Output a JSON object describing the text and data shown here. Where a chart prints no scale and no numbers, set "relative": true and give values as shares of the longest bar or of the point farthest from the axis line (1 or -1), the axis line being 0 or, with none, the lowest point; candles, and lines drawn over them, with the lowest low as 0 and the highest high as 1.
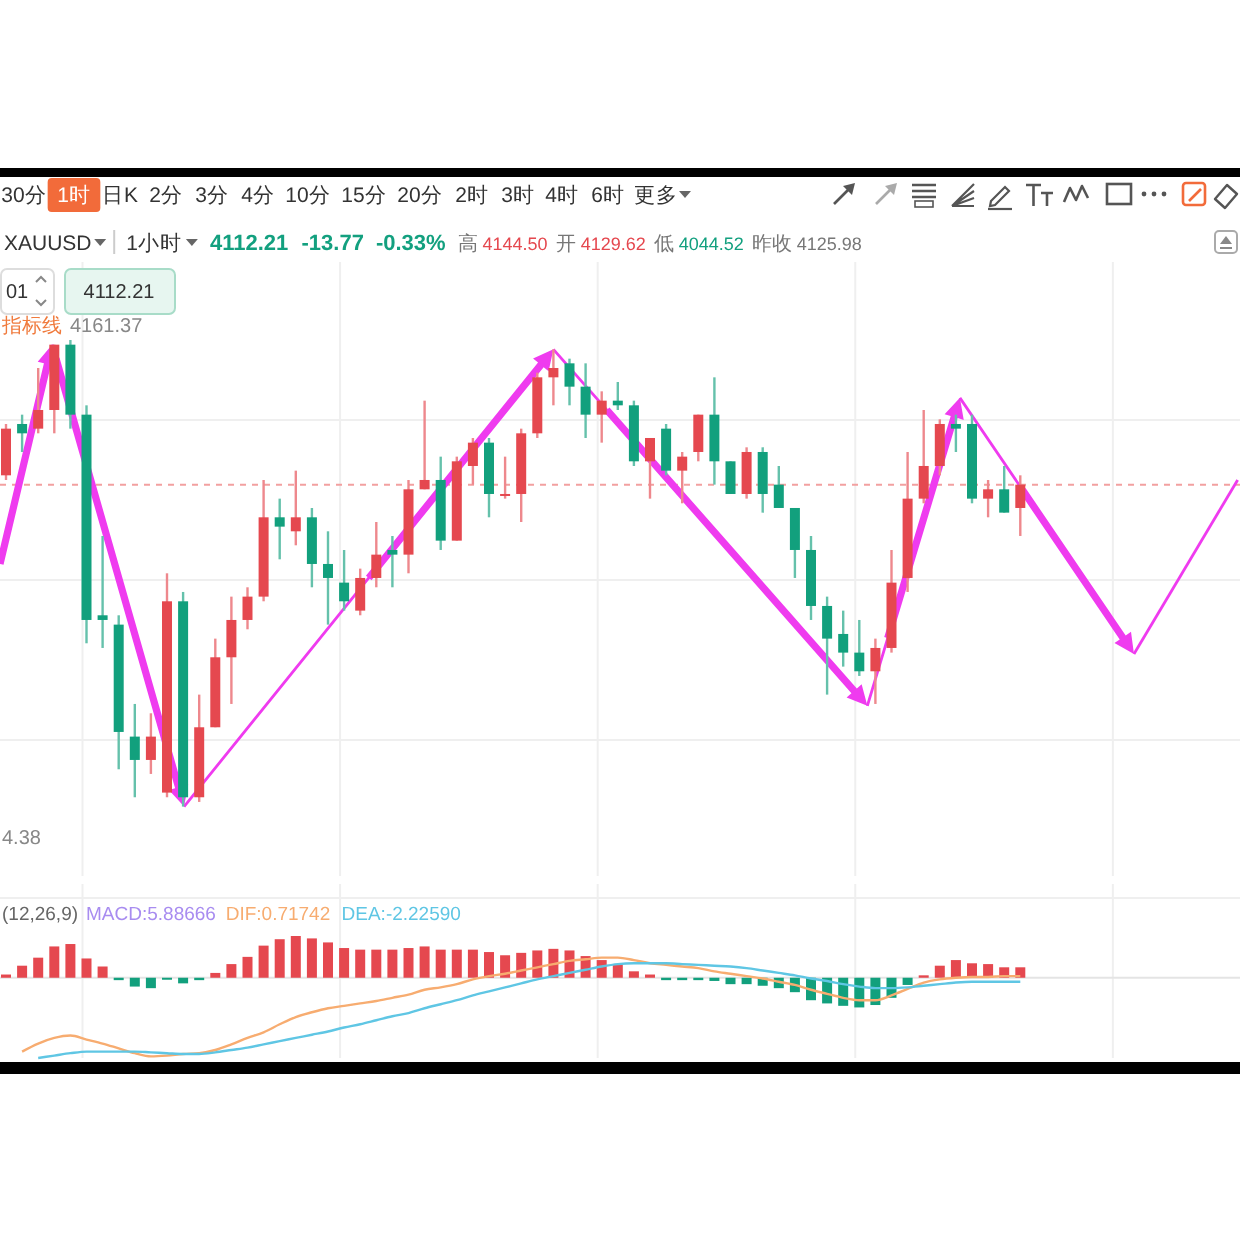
{
  "chart_data": [
    {
      "type": "other",
      "annotations": [
        "30分",
        "1时",
        "日K",
        "2分",
        "3分",
        "4分",
        "10分",
        "15分",
        "20分",
        "2时",
        "3时",
        "4时",
        "6时",
        "更多"
      ]
    },
    {
      "type": "candlestick",
      "title": "XAUUSD",
      "subtitle": "1小时",
      "relative": true,
      "grid": true,
      "categories": [
        null,
        null,
        null,
        null,
        null,
        null,
        null,
        null,
        null,
        null,
        null,
        null,
        null,
        null,
        null,
        null,
        null,
        null,
        null,
        null,
        null,
        null,
        null,
        null,
        null,
        null,
        null,
        null,
        null,
        null,
        null,
        null,
        null,
        null,
        null,
        null,
        null,
        null,
        null,
        null,
        null,
        null,
        null,
        null,
        null,
        null,
        null,
        null,
        null,
        null,
        null,
        null,
        null,
        null,
        null,
        null,
        null,
        null,
        null,
        null,
        null,
        null,
        null,
        null
      ],
      "ohlc": [
        [
          0.71,
          0.82,
          0.7,
          0.81
        ],
        [
          0.82,
          0.84,
          0.76,
          0.8
        ],
        [
          0.81,
          0.94,
          0.8,
          0.85
        ],
        [
          0.85,
          0.99,
          0.8,
          0.99
        ],
        [
          0.99,
          1.0,
          0.81,
          0.84
        ],
        [
          0.84,
          0.86,
          0.35,
          0.4
        ],
        [
          0.41,
          0.58,
          0.34,
          0.4
        ],
        [
          0.39,
          0.41,
          0.08,
          0.16
        ],
        [
          0.15,
          0.22,
          0.02,
          0.1
        ],
        [
          0.1,
          0.2,
          0.07,
          0.15
        ],
        [
          0.03,
          0.5,
          0.02,
          0.44
        ],
        [
          0.44,
          0.46,
          0.0,
          0.02
        ],
        [
          0.02,
          0.24,
          0.01,
          0.17
        ],
        [
          0.17,
          0.36,
          0.17,
          0.32
        ],
        [
          0.32,
          0.45,
          0.22,
          0.4
        ],
        [
          0.4,
          0.47,
          0.38,
          0.45
        ],
        [
          0.45,
          0.7,
          0.44,
          0.62
        ],
        [
          0.62,
          0.66,
          0.53,
          0.6
        ],
        [
          0.59,
          0.72,
          0.56,
          0.62
        ],
        [
          0.62,
          0.64,
          0.47,
          0.52
        ],
        [
          0.52,
          0.59,
          0.39,
          0.49
        ],
        [
          0.48,
          0.55,
          0.42,
          0.44
        ],
        [
          0.42,
          0.51,
          0.41,
          0.49
        ],
        [
          0.49,
          0.61,
          0.47,
          0.54
        ],
        [
          0.55,
          0.58,
          0.47,
          0.54
        ],
        [
          0.54,
          0.7,
          0.5,
          0.68
        ],
        [
          0.68,
          0.87,
          0.68,
          0.7
        ],
        [
          0.7,
          0.75,
          0.55,
          0.57
        ],
        [
          0.57,
          0.75,
          0.57,
          0.74
        ],
        [
          0.73,
          0.79,
          0.69,
          0.78
        ],
        [
          0.78,
          0.79,
          0.62,
          0.67
        ],
        [
          0.67,
          0.75,
          0.66,
          0.67
        ],
        [
          0.67,
          0.81,
          0.61,
          0.8
        ],
        [
          0.8,
          0.93,
          0.79,
          0.92
        ],
        [
          0.92,
          0.98,
          0.86,
          0.94
        ],
        [
          0.95,
          0.96,
          0.86,
          0.9
        ],
        [
          0.9,
          0.95,
          0.79,
          0.84
        ],
        [
          0.84,
          0.89,
          0.78,
          0.87
        ],
        [
          0.87,
          0.91,
          0.85,
          0.86
        ],
        [
          0.86,
          0.87,
          0.73,
          0.74
        ],
        [
          0.74,
          0.79,
          0.66,
          0.79
        ],
        [
          0.81,
          0.82,
          0.71,
          0.72
        ],
        [
          0.72,
          0.76,
          0.65,
          0.75
        ],
        [
          0.76,
          0.84,
          0.74,
          0.84
        ],
        [
          0.84,
          0.92,
          0.69,
          0.74
        ],
        [
          0.74,
          0.74,
          0.67,
          0.67
        ],
        [
          0.67,
          0.77,
          0.66,
          0.76
        ],
        [
          0.76,
          0.77,
          0.63,
          0.67
        ],
        [
          0.69,
          0.73,
          0.64,
          0.64
        ],
        [
          0.64,
          0.64,
          0.49,
          0.55
        ],
        [
          0.55,
          0.58,
          0.4,
          0.43
        ],
        [
          0.43,
          0.45,
          0.24,
          0.36
        ],
        [
          0.37,
          0.42,
          0.3,
          0.33
        ],
        [
          0.33,
          0.4,
          0.28,
          0.29
        ],
        [
          0.29,
          0.36,
          0.22,
          0.34
        ],
        [
          0.34,
          0.55,
          0.33,
          0.48
        ],
        [
          0.49,
          0.76,
          0.46,
          0.66
        ],
        [
          0.66,
          0.85,
          0.65,
          0.73
        ],
        [
          0.73,
          0.83,
          0.71,
          0.82
        ],
        [
          0.82,
          0.84,
          0.76,
          0.81
        ],
        [
          0.82,
          0.84,
          0.65,
          0.66
        ],
        [
          0.66,
          0.7,
          0.62,
          0.68
        ],
        [
          0.68,
          0.73,
          0.63,
          0.63
        ],
        [
          0.64,
          0.71,
          0.58,
          0.69
        ]
      ],
      "colors": [
        "#e5484f",
        "#12a07d",
        "#e5484f",
        "#e5484f",
        "#12a07d",
        "#12a07d",
        "#12a07d",
        "#12a07d",
        "#12a07d",
        "#e5484f",
        "#e5484f",
        "#12a07d",
        "#e5484f",
        "#e5484f",
        "#e5484f",
        "#e5484f",
        "#e5484f",
        "#12a07d",
        "#e5484f",
        "#12a07d",
        "#12a07d",
        "#12a07d",
        "#e5484f",
        "#e5484f",
        "#12a07d",
        "#e5484f",
        "#e5484f",
        "#12a07d",
        "#e5484f",
        "#e5484f",
        "#12a07d",
        "#e5484f",
        "#e5484f",
        "#e5484f",
        "#e5484f",
        "#12a07d",
        "#12a07d",
        "#e5484f",
        "#12a07d",
        "#12a07d",
        "#e5484f",
        "#12a07d",
        "#e5484f",
        "#e5484f",
        "#12a07d",
        "#12a07d",
        "#e5484f",
        "#12a07d",
        "#12a07d",
        "#12a07d",
        "#12a07d",
        "#12a07d",
        "#12a07d",
        "#12a07d",
        "#e5484f",
        "#e5484f",
        "#e5484f",
        "#e5484f",
        "#e5484f",
        "#12a07d",
        "#12a07d",
        "#e5484f",
        "#12a07d",
        "#e5484f"
      ],
      "ref_lines": [
        {
          "axis": "y",
          "value": 0.69,
          "color": "#f2a0a0",
          "line_style": "dashed"
        }
      ],
      "annotations": [
        "4112.21",
        "-13.77",
        "-0.33%",
        "高",
        "4144.50",
        "开",
        "4129.62",
        "低",
        "4044.52",
        "昨收",
        "4125.98",
        "01",
        "4112.21",
        "指标线",
        "4161.37",
        "4.38"
      ]
    },
    {
      "type": "bar",
      "title": "(12,26,9)",
      "relative": true,
      "grid": true,
      "categories": [
        null,
        null,
        null,
        null,
        null,
        null,
        null,
        null,
        null,
        null,
        null,
        null,
        null,
        null,
        null,
        null,
        null,
        null,
        null,
        null,
        null,
        null,
        null,
        null,
        null,
        null,
        null,
        null,
        null,
        null,
        null,
        null,
        null,
        null,
        null,
        null,
        null,
        null,
        null,
        null,
        null,
        null,
        null,
        null,
        null,
        null,
        null,
        null,
        null,
        null,
        null,
        null,
        null,
        null,
        null,
        null,
        null,
        null,
        null,
        null,
        null,
        null,
        null,
        null
      ],
      "series": [
        {
          "name": "MACD:5.88666",
          "type": "bar",
          "values": [
            0.04,
            0.15,
            0.25,
            0.39,
            0.42,
            0.24,
            0.14,
            -0.03,
            -0.11,
            -0.13,
            -0.02,
            -0.07,
            -0.03,
            0.06,
            0.17,
            0.26,
            0.4,
            0.48,
            0.52,
            0.49,
            0.44,
            0.37,
            0.35,
            0.35,
            0.35,
            0.37,
            0.39,
            0.35,
            0.35,
            0.35,
            0.32,
            0.28,
            0.31,
            0.34,
            0.36,
            0.34,
            0.27,
            0.22,
            0.17,
            0.08,
            0.04,
            -0.03,
            -0.03,
            -0.03,
            -0.04,
            -0.08,
            -0.08,
            -0.1,
            -0.13,
            -0.18,
            -0.28,
            -0.32,
            -0.35,
            -0.37,
            -0.34,
            -0.25,
            -0.09,
            0.03,
            0.15,
            0.22,
            0.18,
            0.17,
            0.13,
            0.13
          ],
          "colors": [
            "#e5484f",
            "#e5484f",
            "#e5484f",
            "#e5484f",
            "#e5484f",
            "#e5484f",
            "#e5484f",
            "#12a07d",
            "#12a07d",
            "#12a07d",
            "#12a07d",
            "#12a07d",
            "#12a07d",
            "#e5484f",
            "#e5484f",
            "#e5484f",
            "#e5484f",
            "#e5484f",
            "#e5484f",
            "#e5484f",
            "#e5484f",
            "#e5484f",
            "#e5484f",
            "#e5484f",
            "#e5484f",
            "#e5484f",
            "#e5484f",
            "#e5484f",
            "#e5484f",
            "#e5484f",
            "#e5484f",
            "#e5484f",
            "#e5484f",
            "#e5484f",
            "#e5484f",
            "#e5484f",
            "#e5484f",
            "#e5484f",
            "#e5484f",
            "#e5484f",
            "#e5484f",
            "#12a07d",
            "#12a07d",
            "#12a07d",
            "#12a07d",
            "#12a07d",
            "#12a07d",
            "#12a07d",
            "#12a07d",
            "#12a07d",
            "#12a07d",
            "#12a07d",
            "#12a07d",
            "#12a07d",
            "#12a07d",
            "#12a07d",
            "#12a07d",
            "#e5484f",
            "#e5484f",
            "#e5484f",
            "#e5484f",
            "#e5484f",
            "#e5484f",
            "#e5484f"
          ]
        },
        {
          "name": "DIF:0.71742",
          "type": "line",
          "color": "#f7ac70",
          "values": [
            null,
            -0.92,
            -0.82,
            -0.75,
            -0.72,
            -0.77,
            -0.82,
            -0.88,
            -0.94,
            -0.98,
            -0.97,
            -0.95,
            -0.94,
            -0.9,
            -0.83,
            -0.75,
            -0.68,
            -0.58,
            -0.49,
            -0.43,
            -0.38,
            -0.35,
            -0.32,
            -0.29,
            -0.25,
            -0.21,
            -0.15,
            -0.12,
            -0.08,
            -0.02,
            0.02,
            0.05,
            0.09,
            0.13,
            0.17,
            0.21,
            0.23,
            0.25,
            0.25,
            0.22,
            0.18,
            0.16,
            0.14,
            0.12,
            0.08,
            0.05,
            0.02,
            -0.01,
            -0.05,
            -0.09,
            -0.15,
            -0.2,
            -0.25,
            -0.28,
            -0.28,
            -0.22,
            -0.14,
            -0.06,
            -0.02,
            0.0,
            0.01,
            0.01,
            0.02,
            0.02
          ]
        },
        {
          "name": "DEA:-2.22590",
          "type": "line",
          "color": "#5fc6e4",
          "values": [
            null,
            null,
            -1.0,
            -0.97,
            -0.94,
            -0.92,
            -0.92,
            -0.92,
            -0.92,
            -0.93,
            -0.94,
            -0.95,
            -0.95,
            -0.93,
            -0.9,
            -0.87,
            -0.83,
            -0.79,
            -0.75,
            -0.71,
            -0.67,
            -0.62,
            -0.58,
            -0.53,
            -0.48,
            -0.44,
            -0.38,
            -0.33,
            -0.28,
            -0.22,
            -0.17,
            -0.12,
            -0.07,
            -0.02,
            0.02,
            0.06,
            0.1,
            0.14,
            0.17,
            0.18,
            0.18,
            0.18,
            0.17,
            0.16,
            0.15,
            0.14,
            0.12,
            0.09,
            0.06,
            0.03,
            -0.01,
            -0.04,
            -0.08,
            -0.11,
            -0.13,
            -0.13,
            -0.12,
            -0.1,
            -0.08,
            -0.06,
            -0.05,
            -0.05,
            -0.05,
            -0.05
          ]
        }
      ]
    }
  ]
}
